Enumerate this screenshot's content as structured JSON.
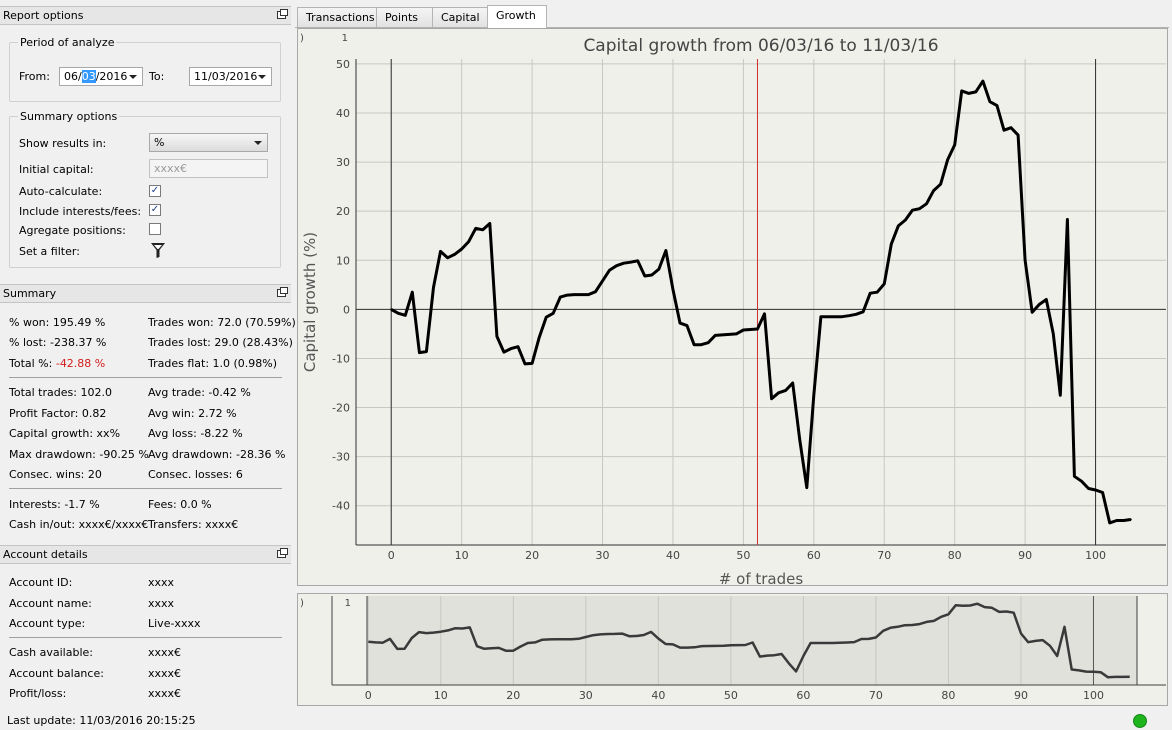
{
  "report_options": {
    "title": "Report options",
    "period": {
      "title": "Period of analyze",
      "from_label": "From:",
      "from_parts": [
        "06/",
        "03",
        "/2016"
      ],
      "to_label": "To:",
      "to_value": "11/03/2016"
    },
    "summary_options": {
      "title": "Summary options",
      "show_results_label": "Show results in:",
      "show_results_value": "%",
      "initial_capital_label": "Initial capital:",
      "initial_capital_placeholder": "xxxx€",
      "auto_calc_label": "Auto-calculate:",
      "auto_calc_checked": true,
      "include_fees_label": "Include interests/fees:",
      "include_fees_checked": true,
      "aggregate_label": "Agregate positions:",
      "aggregate_checked": false,
      "filter_label": "Set a filter:",
      "filter_icon": "filter-icon"
    }
  },
  "summary": {
    "title": "Summary",
    "won": "% won: 195.49 %",
    "trades_won": "Trades won: 72.0 (70.59%)",
    "lost": "% lost: -238.37 %",
    "trades_lost": "Trades lost: 29.0 (28.43%)",
    "total_label": "Total %: ",
    "total_value": "-42.88 %",
    "total_color": "#d41c1c",
    "trades_flat": "Trades flat: 1.0 (0.98%)",
    "total_trades": "Total trades: 102.0",
    "avg_trade": "Avg trade: -0.42 %",
    "profit_factor": "Profit Factor: 0.82",
    "avg_win": "Avg win: 2.72 %",
    "capital_growth": "Capital growth: xx%",
    "avg_loss": "Avg loss: -8.22 %",
    "max_drawdown": "Max drawdown: -90.25 %",
    "avg_drawdown": "Avg drawdown: -28.36 %",
    "consec_wins": "Consec. wins: 20",
    "consec_losses": "Consec. losses: 6",
    "interests": "Interests: -1.7 %",
    "fees": "Fees: 0.0 %",
    "cash_inout": "Cash in/out: xxxx€/xxxx€",
    "transfers": "Transfers: xxxx€"
  },
  "account": {
    "title": "Account details",
    "rows": [
      {
        "label": "Account ID:",
        "value": "xxxx"
      },
      {
        "label": "Account name:",
        "value": "xxxx"
      },
      {
        "label": "Account type:",
        "value": "Live-xxxx"
      },
      {
        "label": "Cash available:",
        "value": "xxxx€"
      },
      {
        "label": "Account balance:",
        "value": "xxxx€"
      },
      {
        "label": "Profit/loss:",
        "value": "xxxx€"
      }
    ]
  },
  "status": {
    "last_update": "Last update: 11/03/2016 20:15:25",
    "indicator_color": "#1eb41e"
  },
  "tabs": [
    {
      "label": "Transactions",
      "active": false
    },
    {
      "label": "Points",
      "active": false
    },
    {
      "label": "Capital",
      "active": false
    },
    {
      "label": "Growth",
      "active": true
    }
  ],
  "chart_data": {
    "type": "line",
    "title": "Capital growth from 06/03/16 to 11/03/16",
    "xlabel": "# of trades",
    "ylabel": "Capital growth (%)",
    "corner_label": "1",
    "xlim": [
      -5,
      110
    ],
    "ylim": [
      -48,
      51
    ],
    "xticks": [
      0,
      10,
      20,
      30,
      40,
      50,
      60,
      70,
      80,
      90,
      100
    ],
    "yticks": [
      -40,
      -30,
      -20,
      -10,
      0,
      10,
      20,
      30,
      40,
      50
    ],
    "grid": true,
    "marker_line_x": 52,
    "marker_line_color": "#d03030",
    "series": [
      {
        "color": "#000000",
        "x": [
          0,
          1,
          2,
          3,
          4,
          5,
          6,
          7,
          8,
          9,
          10,
          11,
          12,
          13,
          14,
          15,
          16,
          17,
          18,
          19,
          20,
          21,
          22,
          23,
          24,
          25,
          26,
          27,
          28,
          29,
          30,
          31,
          32,
          33,
          34,
          35,
          36,
          37,
          38,
          39,
          40,
          41,
          42,
          43,
          44,
          45,
          46,
          47,
          48,
          49,
          50,
          51,
          52,
          53,
          54,
          55,
          56,
          57,
          58,
          59,
          60,
          61,
          62,
          63,
          64,
          65,
          66,
          67,
          68,
          69,
          70,
          71,
          72,
          73,
          74,
          75,
          76,
          77,
          78,
          79,
          80,
          81,
          82,
          83,
          84,
          85,
          86,
          87,
          88,
          89,
          90,
          91,
          92,
          93,
          94,
          95,
          96,
          97,
          98,
          99,
          100,
          101,
          102,
          103,
          104,
          105
        ],
        "y": [
          0,
          -0.8,
          -1.2,
          3.5,
          -8.8,
          -8.6,
          4.5,
          11.8,
          10.5,
          11.2,
          12.3,
          13.8,
          16.5,
          16.2,
          17.5,
          -5.5,
          -8.7,
          -8.0,
          -7.6,
          -11.1,
          -11.0,
          -5.8,
          -1.6,
          -0.8,
          2.5,
          2.9,
          3.0,
          3.0,
          3.0,
          3.6,
          5.8,
          8.0,
          8.9,
          9.4,
          9.6,
          9.9,
          6.8,
          7.0,
          8.2,
          12.0,
          4.0,
          -2.8,
          -3.3,
          -7.2,
          -7.2,
          -6.8,
          -5.3,
          -5.2,
          -5.1,
          -5.0,
          -4.2,
          -4.1,
          -4.0,
          -0.9,
          -18.2,
          -17.0,
          -16.5,
          -15.0,
          -26.5,
          -36.3,
          -17.5,
          -1.5,
          -1.5,
          -1.5,
          -1.5,
          -1.3,
          -1.0,
          -0.5,
          3.3,
          3.5,
          5.2,
          13.3,
          17.0,
          18.2,
          20.2,
          20.5,
          21.5,
          24.2,
          25.5,
          30.5,
          33.5,
          44.5,
          44.0,
          44.3,
          46.5,
          42.3,
          41.5,
          36.5,
          37.0,
          35.5,
          10.0,
          -0.6,
          1.0,
          2.0,
          -5.0,
          -17.5,
          18.3,
          -34.0,
          -35.0,
          -36.5,
          -36.8,
          -37.3,
          -43.5,
          -43.0,
          -43.0,
          -42.8
        ]
      }
    ]
  },
  "navigator": {
    "corner_label": "1",
    "xticks": [
      0,
      10,
      20,
      30,
      40,
      50,
      60,
      70,
      80,
      90,
      100
    ]
  }
}
